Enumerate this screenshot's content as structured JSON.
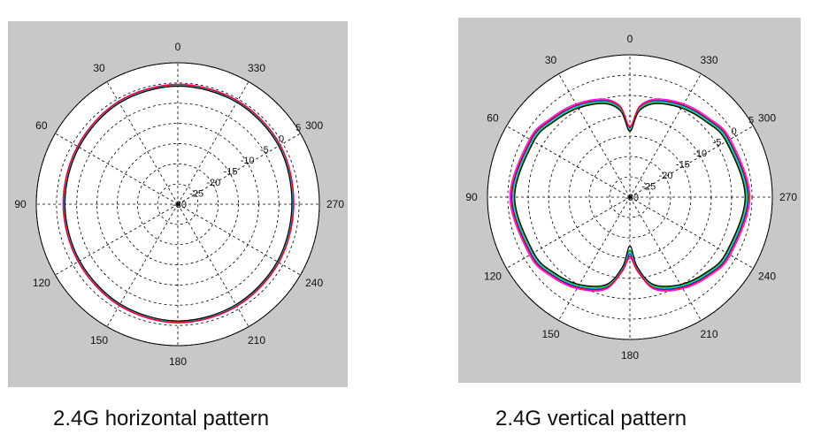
{
  "captions": {
    "left": "2.4G horizontal pattern",
    "right": "2.4G vertical pattern"
  },
  "chart_data": [
    {
      "type": "line",
      "subtype": "polar",
      "title": "2.4G horizontal pattern",
      "theta_ticks": [
        "0",
        "330",
        "300",
        "270",
        "240",
        "210",
        "180",
        "150",
        "120",
        "90",
        "60",
        "30"
      ],
      "r_ticks": [
        "-30",
        "-25",
        "-20",
        "-15",
        "-10",
        "-5",
        "0",
        "5"
      ],
      "r_range": [
        -30,
        5
      ],
      "theta_direction": "counterclockwise",
      "theta_zero": "top",
      "grid": true,
      "colors": [
        "#0000ff",
        "#00a000",
        "#ff00ff",
        "#00c8c8",
        "#ff0000",
        "#000000",
        "#80c0ff",
        "#a000a0"
      ],
      "theta": [
        0,
        30,
        60,
        90,
        120,
        150,
        180,
        210,
        240,
        270,
        300,
        330
      ],
      "series_values": [
        [
          -0.5,
          -0.8,
          -1.5,
          -1.8,
          -1.7,
          -1.2,
          -0.8,
          -1.0,
          -1.3,
          -1.5,
          -0.9,
          -0.6
        ],
        [
          -0.7,
          -1.0,
          -1.7,
          -2.0,
          -1.9,
          -1.4,
          -1.0,
          -1.2,
          -1.5,
          -1.7,
          -1.1,
          -0.8
        ],
        [
          -0.3,
          -0.6,
          -1.3,
          -1.6,
          -1.5,
          -1.0,
          -0.6,
          -0.8,
          -1.1,
          -1.3,
          -0.7,
          -0.4
        ],
        [
          -0.6,
          -0.9,
          -1.6,
          -1.9,
          -1.8,
          -1.3,
          -0.9,
          -1.1,
          -1.4,
          -1.6,
          -1.0,
          -0.7
        ],
        [
          -0.4,
          -0.7,
          -1.4,
          -1.7,
          -1.6,
          -1.1,
          -0.7,
          -0.9,
          -1.2,
          -1.4,
          -0.8,
          -0.5
        ],
        [
          -0.8,
          -1.1,
          -1.8,
          -2.1,
          -2.0,
          -1.5,
          -1.1,
          -1.3,
          -1.6,
          -1.8,
          -1.2,
          -0.9
        ]
      ]
    },
    {
      "type": "line",
      "subtype": "polar",
      "title": "2.4G vertical pattern",
      "theta_ticks": [
        "0",
        "330",
        "300",
        "270",
        "240",
        "210",
        "180",
        "150",
        "120",
        "90",
        "60",
        "30"
      ],
      "r_ticks": [
        "-30",
        "-25",
        "-20",
        "-15",
        "-10",
        "-5",
        "0",
        "5"
      ],
      "r_range": [
        -30,
        5
      ],
      "theta_direction": "counterclockwise",
      "theta_zero": "top",
      "grid": true,
      "colors": [
        "#0000ff",
        "#00a000",
        "#ff00ff",
        "#00c8c8",
        "#ff0000",
        "#000000",
        "#80c0ff",
        "#a000a0"
      ],
      "theta": [
        0,
        6,
        15,
        30,
        45,
        60,
        90,
        120,
        135,
        150,
        165,
        174,
        180,
        186,
        195,
        210,
        225,
        240,
        270,
        300,
        315,
        330,
        345,
        354
      ],
      "series_values": [
        [
          -13,
          -8,
          -5.5,
          -4,
          -3,
          -2,
          -1,
          -2,
          -3,
          -4.5,
          -7,
          -12,
          -16,
          -12,
          -7,
          -4.5,
          -3,
          -2,
          -1,
          -2,
          -3,
          -4,
          -5.5,
          -8
        ],
        [
          -13.5,
          -8.5,
          -6,
          -4.5,
          -3.5,
          -2.5,
          -1.5,
          -2.5,
          -3.5,
          -5,
          -7.5,
          -12.5,
          -17,
          -12.5,
          -7.5,
          -5,
          -3.5,
          -2.5,
          -1.5,
          -2.5,
          -3.5,
          -4.5,
          -6,
          -8.5
        ],
        [
          -12.5,
          -7.5,
          -5,
          -3.5,
          -2.5,
          -1.5,
          -0.5,
          -1.5,
          -2.5,
          -4,
          -6.5,
          -11.5,
          -15,
          -11.5,
          -6.5,
          -4,
          -2.5,
          -1.5,
          -0.5,
          -1.5,
          -2.5,
          -3.5,
          -5,
          -7.5
        ],
        [
          -13.2,
          -8.2,
          -5.7,
          -4.2,
          -3.2,
          -2.2,
          -1.2,
          -2.2,
          -3.2,
          -4.7,
          -7.2,
          -12.2,
          -16.5,
          -12.2,
          -7.2,
          -4.7,
          -3.2,
          -2.2,
          -1.2,
          -2.2,
          -3.2,
          -4.2,
          -5.7,
          -8.2
        ],
        [
          -12.8,
          -7.8,
          -5.3,
          -3.8,
          -2.8,
          -1.8,
          -0.8,
          -1.8,
          -2.8,
          -4.3,
          -6.8,
          -11.8,
          -15.5,
          -11.8,
          -6.8,
          -4.3,
          -2.8,
          -1.8,
          -0.8,
          -1.8,
          -2.8,
          -3.8,
          -5.3,
          -7.8
        ],
        [
          -13.8,
          -8.8,
          -6.2,
          -4.7,
          -3.7,
          -2.7,
          -1.7,
          -2.7,
          -3.7,
          -5.2,
          -7.8,
          -12.8,
          -18,
          -12.8,
          -7.8,
          -5.2,
          -3.7,
          -2.7,
          -1.7,
          -2.7,
          -3.7,
          -4.7,
          -6.2,
          -8.8
        ]
      ]
    }
  ]
}
